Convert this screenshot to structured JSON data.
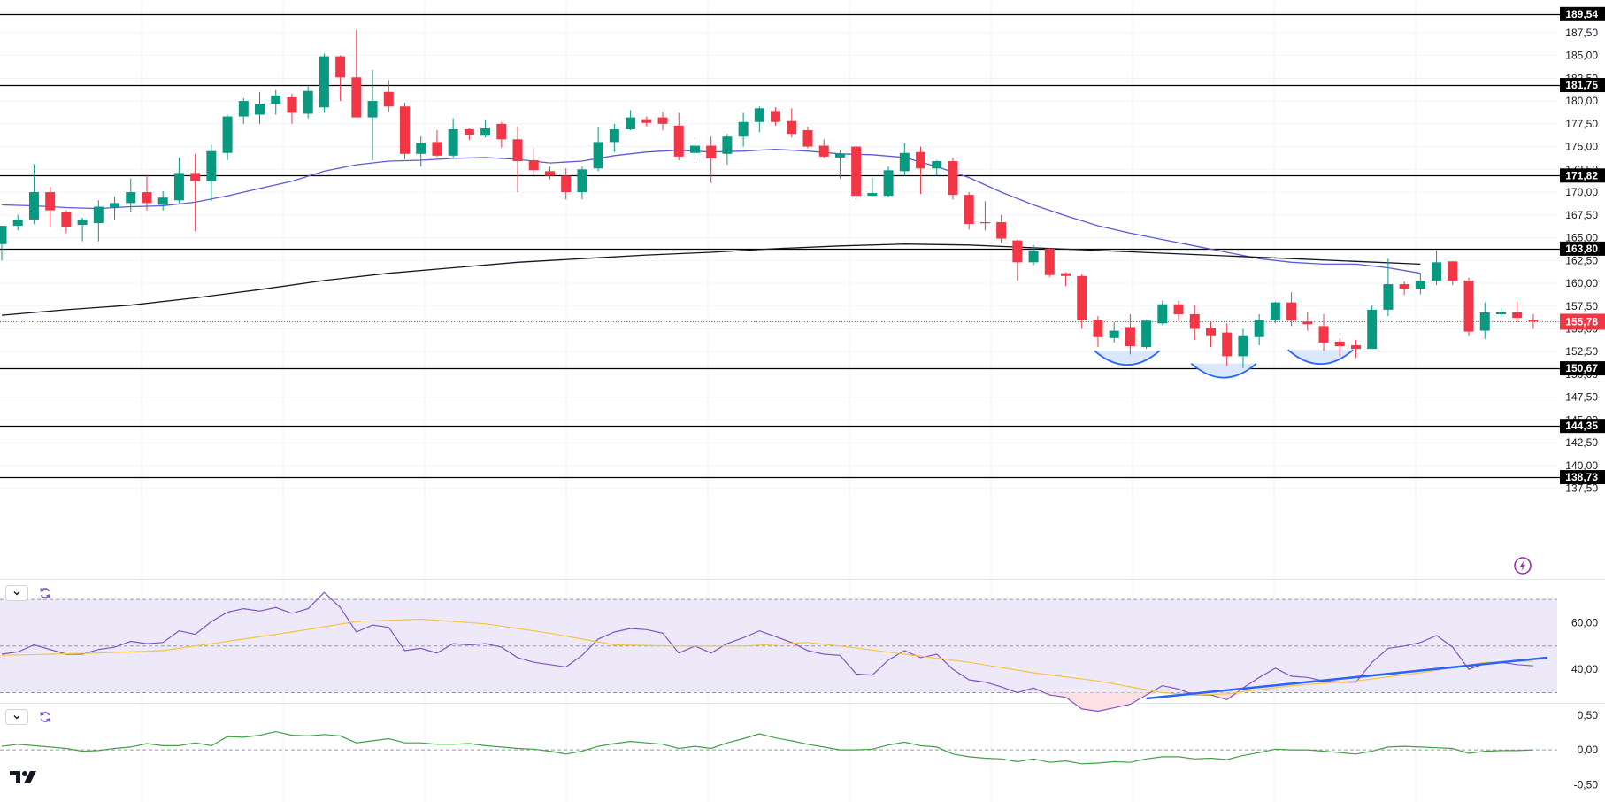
{
  "chart_data": [
    {
      "type": "candlestick",
      "title": "",
      "price_axis": {
        "ticks": [
          "187,50",
          "185,00",
          "182,50",
          "180,00",
          "177,50",
          "175,00",
          "172,50",
          "170,00",
          "167,50",
          "165,00",
          "162,50",
          "160,00",
          "157,50",
          "155,00",
          "152,50",
          "150,00",
          "147,50",
          "145,00",
          "142,50",
          "140,00",
          "137,50"
        ],
        "ylim": [
          136.5,
          190.3
        ]
      },
      "current_price": {
        "value": 155.78,
        "label": "155,78",
        "color": "#f23645"
      },
      "horizontal_levels": [
        {
          "value": 189.54,
          "label": "189,54"
        },
        {
          "value": 181.75,
          "label": "181,75"
        },
        {
          "value": 171.82,
          "label": "171,82"
        },
        {
          "value": 163.8,
          "label": "163,80"
        },
        {
          "value": 150.67,
          "label": "150,67"
        },
        {
          "value": 144.35,
          "label": "144,35"
        },
        {
          "value": 138.73,
          "label": "138,73"
        }
      ],
      "candles": [
        [
          164.3,
          166.3,
          162.5,
          166.3
        ],
        [
          166.3,
          167.5,
          165.8,
          167.0
        ],
        [
          167.0,
          173.1,
          166.5,
          170.0
        ],
        [
          170.0,
          170.6,
          166.2,
          168.0
        ],
        [
          167.8,
          168.0,
          165.5,
          166.2
        ],
        [
          166.4,
          167.2,
          164.6,
          167.0
        ],
        [
          166.6,
          169.1,
          164.6,
          168.4
        ],
        [
          168.3,
          169.5,
          167.0,
          168.8
        ],
        [
          168.8,
          171.5,
          167.8,
          170.0
        ],
        [
          170.0,
          171.9,
          168.0,
          168.8
        ],
        [
          168.6,
          170.1,
          168.0,
          169.4
        ],
        [
          169.1,
          173.8,
          168.8,
          172.1
        ],
        [
          172.1,
          174.2,
          165.7,
          171.2
        ],
        [
          171.2,
          175.2,
          169.0,
          174.5
        ],
        [
          174.3,
          178.5,
          173.5,
          178.3
        ],
        [
          178.3,
          180.3,
          177.5,
          180.0
        ],
        [
          178.5,
          181.0,
          177.5,
          179.7
        ],
        [
          179.7,
          181.2,
          178.5,
          180.6
        ],
        [
          180.4,
          180.8,
          177.5,
          178.7
        ],
        [
          178.6,
          181.6,
          178.1,
          181.1
        ],
        [
          179.3,
          185.2,
          178.7,
          184.9
        ],
        [
          184.9,
          185.0,
          180.0,
          182.6
        ],
        [
          182.6,
          187.8,
          178.5,
          178.2
        ],
        [
          178.2,
          183.4,
          173.5,
          180.0
        ],
        [
          181.0,
          182.3,
          178.8,
          179.4
        ],
        [
          179.4,
          179.8,
          173.6,
          174.2
        ],
        [
          174.2,
          176.1,
          172.8,
          175.4
        ],
        [
          175.5,
          176.8,
          173.9,
          174.0
        ],
        [
          174.0,
          178.1,
          173.7,
          176.9
        ],
        [
          176.9,
          177.0,
          175.7,
          176.3
        ],
        [
          176.2,
          177.9,
          176.0,
          177.0
        ],
        [
          177.5,
          177.7,
          174.9,
          175.8
        ],
        [
          175.8,
          177.2,
          170.0,
          173.4
        ],
        [
          173.5,
          174.8,
          171.8,
          172.4
        ],
        [
          172.3,
          172.8,
          171.4,
          171.8
        ],
        [
          171.8,
          172.6,
          169.2,
          170.0
        ],
        [
          170.0,
          172.8,
          169.2,
          172.5
        ],
        [
          172.6,
          177.1,
          172.3,
          175.5
        ],
        [
          175.5,
          177.5,
          174.4,
          176.9
        ],
        [
          176.9,
          179.0,
          176.8,
          178.2
        ],
        [
          178.0,
          178.3,
          177.2,
          177.6
        ],
        [
          178.2,
          178.8,
          176.8,
          177.5
        ],
        [
          177.3,
          178.7,
          173.5,
          173.9
        ],
        [
          174.3,
          176.0,
          173.5,
          175.1
        ],
        [
          175.1,
          176.1,
          171.0,
          173.7
        ],
        [
          174.2,
          176.4,
          173.0,
          176.1
        ],
        [
          176.1,
          178.7,
          175.0,
          177.7
        ],
        [
          177.7,
          179.4,
          176.6,
          179.2
        ],
        [
          178.9,
          179.3,
          177.3,
          177.7
        ],
        [
          177.8,
          179.2,
          176.0,
          176.4
        ],
        [
          176.8,
          177.2,
          174.8,
          175.0
        ],
        [
          175.1,
          175.8,
          173.7,
          173.9
        ],
        [
          173.8,
          174.6,
          171.5,
          174.2
        ],
        [
          175.0,
          175.1,
          169.2,
          169.6
        ],
        [
          169.6,
          171.6,
          169.5,
          169.9
        ],
        [
          169.6,
          172.8,
          169.4,
          172.4
        ],
        [
          172.3,
          175.4,
          171.8,
          174.3
        ],
        [
          174.4,
          175.0,
          169.8,
          172.6
        ],
        [
          172.6,
          173.5,
          171.8,
          173.4
        ],
        [
          173.4,
          173.8,
          169.2,
          169.7
        ],
        [
          169.7,
          170.0,
          165.9,
          166.5
        ],
        [
          166.7,
          169.0,
          165.8,
          166.6
        ],
        [
          166.7,
          167.5,
          164.4,
          164.9
        ],
        [
          164.7,
          164.8,
          160.3,
          162.3
        ],
        [
          162.3,
          164.2,
          162.0,
          163.6
        ],
        [
          163.8,
          163.9,
          160.7,
          160.9
        ],
        [
          161.1,
          161.2,
          159.7,
          160.8
        ],
        [
          160.8,
          161.0,
          155.0,
          156.0
        ],
        [
          156.0,
          156.4,
          153.0,
          154.1
        ],
        [
          154.0,
          155.7,
          153.5,
          154.8
        ],
        [
          155.2,
          156.6,
          152.2,
          153.1
        ],
        [
          153.0,
          156.0,
          152.8,
          155.9
        ],
        [
          155.6,
          158.1,
          155.4,
          157.7
        ],
        [
          157.7,
          158.1,
          155.8,
          156.6
        ],
        [
          156.6,
          157.6,
          153.8,
          155.0
        ],
        [
          155.1,
          155.8,
          153.0,
          154.2
        ],
        [
          154.6,
          155.6,
          150.9,
          152.0
        ],
        [
          152.0,
          155.0,
          150.7,
          154.2
        ],
        [
          154.1,
          156.6,
          153.2,
          156.0
        ],
        [
          156.0,
          158.0,
          155.6,
          157.9
        ],
        [
          157.9,
          159.0,
          155.3,
          155.9
        ],
        [
          155.8,
          156.9,
          154.8,
          155.5
        ],
        [
          155.3,
          156.6,
          152.6,
          153.5
        ],
        [
          153.6,
          154.0,
          152.0,
          153.1
        ],
        [
          153.2,
          153.8,
          151.8,
          152.8
        ],
        [
          152.8,
          157.6,
          152.8,
          157.1
        ],
        [
          157.1,
          162.7,
          156.4,
          159.9
        ],
        [
          159.9,
          160.2,
          158.7,
          159.4
        ],
        [
          159.4,
          161.1,
          158.8,
          160.3
        ],
        [
          160.3,
          163.6,
          159.8,
          162.3
        ],
        [
          162.4,
          162.4,
          159.8,
          160.3
        ],
        [
          160.3,
          160.6,
          154.2,
          154.7
        ],
        [
          154.8,
          157.9,
          153.9,
          156.8
        ],
        [
          156.6,
          157.3,
          156.3,
          156.8
        ],
        [
          156.8,
          158.0,
          155.7,
          156.2
        ],
        [
          156.0,
          156.6,
          155.0,
          155.8
        ]
      ],
      "ma_blue": [
        [
          0,
          168.6
        ],
        [
          2,
          168.5
        ],
        [
          4,
          168.3
        ],
        [
          6,
          168.2
        ],
        [
          8,
          168.4
        ],
        [
          10,
          168.5
        ],
        [
          12,
          168.9
        ],
        [
          14,
          169.6
        ],
        [
          16,
          170.4
        ],
        [
          18,
          171.2
        ],
        [
          20,
          172.3
        ],
        [
          22,
          173.0
        ],
        [
          24,
          173.4
        ],
        [
          26,
          173.5
        ],
        [
          28,
          173.7
        ],
        [
          30,
          173.8
        ],
        [
          32,
          173.6
        ],
        [
          34,
          173.2
        ],
        [
          36,
          173.4
        ],
        [
          38,
          174.0
        ],
        [
          40,
          174.4
        ],
        [
          42,
          174.6
        ],
        [
          44,
          174.4
        ],
        [
          46,
          174.5
        ],
        [
          48,
          174.7
        ],
        [
          50,
          174.5
        ],
        [
          52,
          174.2
        ],
        [
          54,
          174.1
        ],
        [
          56,
          173.8
        ],
        [
          58,
          172.8
        ],
        [
          60,
          171.6
        ],
        [
          62,
          170.0
        ],
        [
          64,
          168.6
        ],
        [
          66,
          167.4
        ],
        [
          68,
          166.3
        ],
        [
          70,
          165.5
        ],
        [
          72,
          164.8
        ],
        [
          74,
          164.1
        ],
        [
          76,
          163.4
        ],
        [
          78,
          162.7
        ],
        [
          80,
          162.3
        ],
        [
          82,
          162.1
        ],
        [
          84,
          162.1
        ],
        [
          86,
          161.7
        ],
        [
          88,
          161.1
        ]
      ],
      "ma_black": [
        [
          0,
          156.5
        ],
        [
          4,
          157.1
        ],
        [
          8,
          157.6
        ],
        [
          12,
          158.4
        ],
        [
          16,
          159.3
        ],
        [
          20,
          160.3
        ],
        [
          24,
          161.1
        ],
        [
          28,
          161.7
        ],
        [
          32,
          162.3
        ],
        [
          36,
          162.7
        ],
        [
          40,
          163.1
        ],
        [
          44,
          163.4
        ],
        [
          48,
          163.8
        ],
        [
          52,
          164.1
        ],
        [
          56,
          164.3
        ],
        [
          60,
          164.2
        ],
        [
          64,
          163.9
        ],
        [
          68,
          163.6
        ],
        [
          72,
          163.3
        ],
        [
          76,
          163.0
        ],
        [
          80,
          162.7
        ],
        [
          84,
          162.4
        ],
        [
          88,
          162.1
        ]
      ],
      "rsi": {
        "ticks": [
          "60,00",
          "40,00"
        ],
        "ylim": [
          26,
          78
        ],
        "upper": 70,
        "middle": 50,
        "lower": 30,
        "line": [
          46.5,
          47.5,
          50.5,
          48.5,
          46.5,
          46.5,
          48.5,
          49.5,
          52.0,
          51.0,
          51.5,
          56.5,
          55.0,
          60.5,
          64.5,
          66.0,
          65.0,
          66.5,
          64.0,
          66.0,
          73.0,
          66.5,
          56.0,
          59.0,
          58.0,
          48.0,
          49.0,
          47.0,
          51.0,
          50.5,
          51.0,
          49.5,
          45.0,
          43.0,
          42.0,
          41.0,
          46.0,
          53.0,
          56.0,
          57.5,
          57.0,
          55.5,
          47.0,
          50.0,
          47.0,
          51.0,
          53.5,
          56.5,
          54.0,
          51.5,
          48.0,
          46.5,
          46.0,
          38.0,
          37.5,
          44.0,
          48.0,
          45.0,
          46.5,
          40.0,
          35.5,
          34.5,
          32.5,
          30.0,
          32.0,
          29.0,
          28.0,
          23.0,
          22.0,
          23.5,
          25.0,
          29.0,
          33.0,
          31.5,
          29.0,
          29.0,
          27.0,
          32.0,
          36.5,
          40.5,
          37.0,
          36.5,
          35.0,
          34.5,
          34.5,
          43.0,
          49.0,
          50.0,
          51.5,
          54.5,
          49.5,
          40.0,
          42.5,
          43.0,
          42.0,
          41.5
        ],
        "ma": [
          [
            0,
            46.0
          ],
          [
            6,
            47.0
          ],
          [
            10,
            48.0
          ],
          [
            14,
            52.0
          ],
          [
            18,
            56.0
          ],
          [
            22,
            60.5
          ],
          [
            26,
            61.5
          ],
          [
            30,
            59.5
          ],
          [
            34,
            55.5
          ],
          [
            38,
            50.5
          ],
          [
            42,
            50.0
          ],
          [
            46,
            50.0
          ],
          [
            50,
            51.5
          ],
          [
            52,
            50.0
          ],
          [
            56,
            46.5
          ],
          [
            60,
            43.0
          ],
          [
            64,
            38.5
          ],
          [
            68,
            35.0
          ],
          [
            70,
            32.5
          ],
          [
            72,
            30.0
          ],
          [
            74,
            29.0
          ],
          [
            76,
            29.5
          ],
          [
            80,
            33.0
          ],
          [
            84,
            35.0
          ],
          [
            88,
            38.5
          ],
          [
            92,
            43.0
          ],
          [
            95,
            43.5
          ]
        ],
        "trendline": [
          [
            71,
            27.5
          ],
          [
            95,
            45.0
          ]
        ]
      },
      "macd": {
        "ticks": [
          "0,50",
          "0,00",
          "-0,50"
        ],
        "ylim": [
          -0.75,
          0.65
        ],
        "zero": 0,
        "line": [
          0.05,
          0.08,
          0.06,
          0.04,
          0.02,
          -0.02,
          -0.01,
          0.02,
          0.04,
          0.09,
          0.06,
          0.06,
          0.1,
          0.06,
          0.19,
          0.18,
          0.21,
          0.26,
          0.21,
          0.2,
          0.22,
          0.2,
          0.1,
          0.13,
          0.16,
          0.1,
          0.1,
          0.08,
          0.08,
          0.09,
          0.06,
          0.04,
          0.02,
          0.01,
          -0.02,
          -0.06,
          -0.02,
          0.05,
          0.09,
          0.12,
          0.1,
          0.08,
          0.02,
          0.05,
          0.02,
          0.1,
          0.16,
          0.23,
          0.17,
          0.13,
          0.08,
          0.04,
          0.0,
          0.0,
          0.01,
          0.07,
          0.11,
          0.06,
          0.04,
          -0.06,
          -0.1,
          -0.12,
          -0.13,
          -0.17,
          -0.13,
          -0.18,
          -0.16,
          -0.2,
          -0.19,
          -0.17,
          -0.18,
          -0.13,
          -0.1,
          -0.1,
          -0.13,
          -0.12,
          -0.14,
          -0.08,
          -0.04,
          0.01,
          0.0,
          0.0,
          -0.02,
          -0.04,
          -0.06,
          -0.02,
          0.04,
          0.05,
          0.04,
          0.03,
          0.02,
          -0.05,
          -0.02,
          -0.01,
          -0.01,
          0.0
        ]
      }
    }
  ],
  "colors": {
    "up": "#089981",
    "down": "#f23645",
    "ma_blue": "#5b5bd6",
    "ma_black": "#131722",
    "rsi_line": "#7e57c2",
    "rsi_ma": "#f5c542",
    "rsi_fill": "#ede9f8",
    "trendline": "#2962ff",
    "macd": "#43a047",
    "level": "#000000"
  },
  "icons": {
    "collapse": "chevron-down-icon",
    "refresh": "refresh-icon",
    "logo": "tradingview-logo-icon",
    "alert": "lightning-icon"
  }
}
